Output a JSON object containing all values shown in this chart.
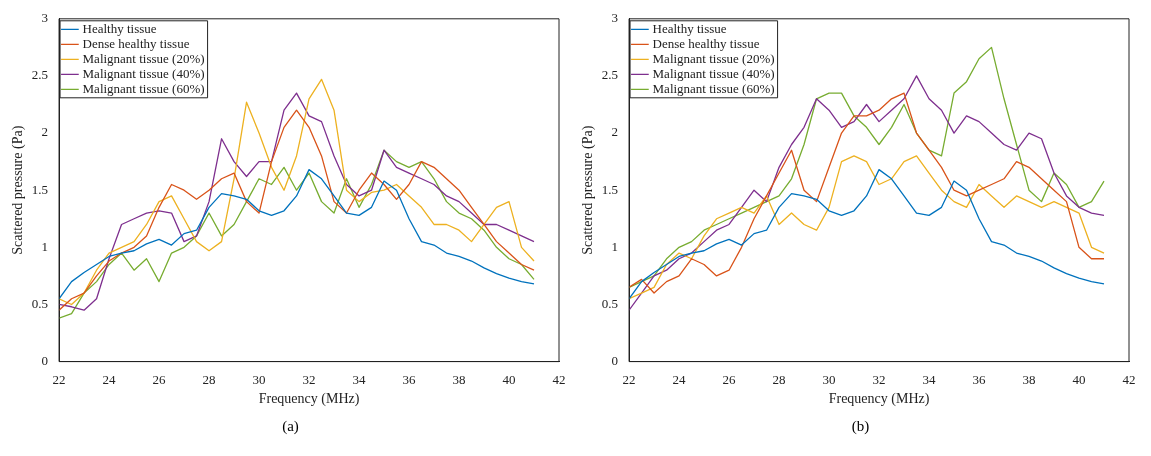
{
  "chart_data": [
    {
      "type": "line",
      "xlabel": "Frequency (MHz)",
      "ylabel": "Scattered pressure (Pa)",
      "annotations": [
        "(a)"
      ],
      "xlim": [
        22,
        42
      ],
      "xticks": [
        22,
        24,
        26,
        28,
        30,
        32,
        34,
        36,
        38,
        40,
        42
      ],
      "ylim": [
        0,
        3
      ],
      "yticks": [
        0,
        0.5,
        1,
        1.5,
        2,
        2.5,
        3
      ],
      "grid": false,
      "legend": "top left",
      "marker": "none",
      "line_style": "solid",
      "x": [
        22,
        22.5,
        23,
        23.5,
        24,
        24.5,
        25,
        25.5,
        26,
        26.5,
        27,
        27.5,
        28,
        28.5,
        29,
        29.5,
        30,
        30.5,
        31,
        31.5,
        32,
        32.5,
        33,
        33.5,
        34,
        34.5,
        35,
        35.5,
        36,
        36.5,
        37,
        37.5,
        38,
        38.5,
        39,
        39.5,
        40,
        40.5,
        41
      ],
      "series": [
        {
          "name": "Healthy tissue",
          "color": "#0072bd",
          "values": [
            0.55,
            0.7,
            0.78,
            0.85,
            0.92,
            0.95,
            0.97,
            1.03,
            1.07,
            1.02,
            1.12,
            1.15,
            1.35,
            1.47,
            1.45,
            1.42,
            1.32,
            1.28,
            1.32,
            1.45,
            1.68,
            1.6,
            1.45,
            1.3,
            1.28,
            1.35,
            1.58,
            1.5,
            1.25,
            1.05,
            1.02,
            0.95,
            0.92,
            0.88,
            0.82,
            0.77,
            0.73,
            0.7,
            0.68
          ]
        },
        {
          "name": "Dense healthy tissue",
          "color": "#d95319",
          "values": [
            0.45,
            0.55,
            0.6,
            0.75,
            0.88,
            0.95,
            1.0,
            1.1,
            1.35,
            1.55,
            1.5,
            1.42,
            1.5,
            1.6,
            1.65,
            1.4,
            1.3,
            1.75,
            2.05,
            2.2,
            2.05,
            1.8,
            1.4,
            1.3,
            1.5,
            1.65,
            1.55,
            1.42,
            1.55,
            1.75,
            1.7,
            1.6,
            1.5,
            1.35,
            1.2,
            1.05,
            0.95,
            0.85,
            0.8
          ]
        },
        {
          "name": "Malignant tissue (20%)",
          "color": "#edb120",
          "values": [
            0.55,
            0.5,
            0.6,
            0.8,
            0.95,
            1.0,
            1.05,
            1.2,
            1.4,
            1.45,
            1.25,
            1.05,
            0.97,
            1.05,
            1.6,
            2.27,
            2.0,
            1.7,
            1.5,
            1.8,
            2.3,
            2.47,
            2.2,
            1.5,
            1.4,
            1.48,
            1.5,
            1.55,
            1.45,
            1.35,
            1.2,
            1.2,
            1.15,
            1.05,
            1.2,
            1.35,
            1.4,
            1.0,
            0.88
          ]
        },
        {
          "name": "Malignant tissue (40%)",
          "color": "#7e2f8e",
          "values": [
            0.5,
            0.48,
            0.45,
            0.55,
            0.9,
            1.2,
            1.25,
            1.3,
            1.32,
            1.3,
            1.05,
            1.1,
            1.4,
            1.95,
            1.75,
            1.62,
            1.75,
            1.75,
            2.2,
            2.35,
            2.15,
            2.1,
            1.8,
            1.55,
            1.45,
            1.5,
            1.85,
            1.7,
            1.65,
            1.6,
            1.55,
            1.45,
            1.4,
            1.3,
            1.2,
            1.2,
            1.15,
            1.1,
            1.05
          ]
        },
        {
          "name": "Malignant tissue (60%)",
          "color": "#77ac30",
          "values": [
            0.38,
            0.42,
            0.6,
            0.7,
            0.85,
            0.95,
            0.8,
            0.9,
            0.7,
            0.95,
            1.0,
            1.1,
            1.3,
            1.1,
            1.2,
            1.4,
            1.6,
            1.55,
            1.7,
            1.5,
            1.65,
            1.4,
            1.3,
            1.6,
            1.35,
            1.55,
            1.85,
            1.75,
            1.7,
            1.75,
            1.6,
            1.4,
            1.3,
            1.25,
            1.15,
            1.0,
            0.9,
            0.85,
            0.72
          ]
        }
      ]
    },
    {
      "type": "line",
      "xlabel": "Frequency (MHz)",
      "ylabel": "Scattered pressure (Pa)",
      "annotations": [
        "(b)"
      ],
      "xlim": [
        22,
        42
      ],
      "xticks": [
        22,
        24,
        26,
        28,
        30,
        32,
        34,
        36,
        38,
        40,
        42
      ],
      "ylim": [
        0,
        3
      ],
      "yticks": [
        0,
        0.5,
        1,
        1.5,
        2,
        2.5,
        3
      ],
      "grid": false,
      "legend": "top left",
      "marker": "none",
      "line_style": "solid",
      "x": [
        22,
        22.5,
        23,
        23.5,
        24,
        24.5,
        25,
        25.5,
        26,
        26.5,
        27,
        27.5,
        28,
        28.5,
        29,
        29.5,
        30,
        30.5,
        31,
        31.5,
        32,
        32.5,
        33,
        33.5,
        34,
        34.5,
        35,
        35.5,
        36,
        36.5,
        37,
        37.5,
        38,
        38.5,
        39,
        39.5,
        40,
        40.5,
        41
      ],
      "series": [
        {
          "name": "Healthy tissue",
          "color": "#0072bd",
          "values": [
            0.55,
            0.7,
            0.78,
            0.85,
            0.92,
            0.95,
            0.97,
            1.03,
            1.07,
            1.02,
            1.12,
            1.15,
            1.35,
            1.47,
            1.45,
            1.42,
            1.32,
            1.28,
            1.32,
            1.45,
            1.68,
            1.6,
            1.45,
            1.3,
            1.28,
            1.35,
            1.58,
            1.5,
            1.25,
            1.05,
            1.02,
            0.95,
            0.92,
            0.88,
            0.82,
            0.77,
            0.73,
            0.7,
            0.68
          ]
        },
        {
          "name": "Dense healthy tissue",
          "color": "#d95319",
          "values": [
            0.65,
            0.72,
            0.6,
            0.7,
            0.75,
            0.9,
            0.85,
            0.75,
            0.8,
            1.0,
            1.25,
            1.45,
            1.65,
            1.85,
            1.5,
            1.4,
            1.7,
            2.0,
            2.15,
            2.15,
            2.2,
            2.3,
            2.35,
            2.0,
            1.85,
            1.7,
            1.5,
            1.45,
            1.5,
            1.55,
            1.6,
            1.75,
            1.7,
            1.6,
            1.5,
            1.4,
            1.0,
            0.9,
            0.9
          ]
        },
        {
          "name": "Malignant tissue (20%)",
          "color": "#edb120",
          "values": [
            0.55,
            0.6,
            0.65,
            0.85,
            0.95,
            0.9,
            1.1,
            1.25,
            1.3,
            1.35,
            1.3,
            1.45,
            1.2,
            1.3,
            1.2,
            1.15,
            1.35,
            1.75,
            1.8,
            1.75,
            1.55,
            1.6,
            1.75,
            1.8,
            1.65,
            1.5,
            1.4,
            1.35,
            1.55,
            1.45,
            1.35,
            1.45,
            1.4,
            1.35,
            1.4,
            1.35,
            1.3,
            1.0,
            0.95
          ]
        },
        {
          "name": "Malignant tissue (40%)",
          "color": "#7e2f8e",
          "values": [
            0.45,
            0.6,
            0.75,
            0.8,
            0.9,
            0.95,
            1.05,
            1.15,
            1.2,
            1.35,
            1.5,
            1.4,
            1.7,
            1.9,
            2.05,
            2.3,
            2.2,
            2.05,
            2.1,
            2.25,
            2.1,
            2.2,
            2.3,
            2.5,
            2.3,
            2.2,
            2.0,
            2.15,
            2.1,
            2.0,
            1.9,
            1.85,
            2.0,
            1.95,
            1.65,
            1.45,
            1.35,
            1.3,
            1.28
          ]
        },
        {
          "name": "Malignant tissue (60%)",
          "color": "#77ac30",
          "values": [
            0.65,
            0.7,
            0.75,
            0.9,
            1.0,
            1.05,
            1.15,
            1.2,
            1.25,
            1.3,
            1.35,
            1.4,
            1.45,
            1.6,
            1.9,
            2.3,
            2.35,
            2.35,
            2.15,
            2.05,
            1.9,
            2.05,
            2.25,
            2.0,
            1.85,
            1.8,
            2.35,
            2.45,
            2.65,
            2.75,
            2.3,
            1.9,
            1.5,
            1.4,
            1.65,
            1.55,
            1.35,
            1.4,
            1.58
          ]
        }
      ]
    }
  ]
}
